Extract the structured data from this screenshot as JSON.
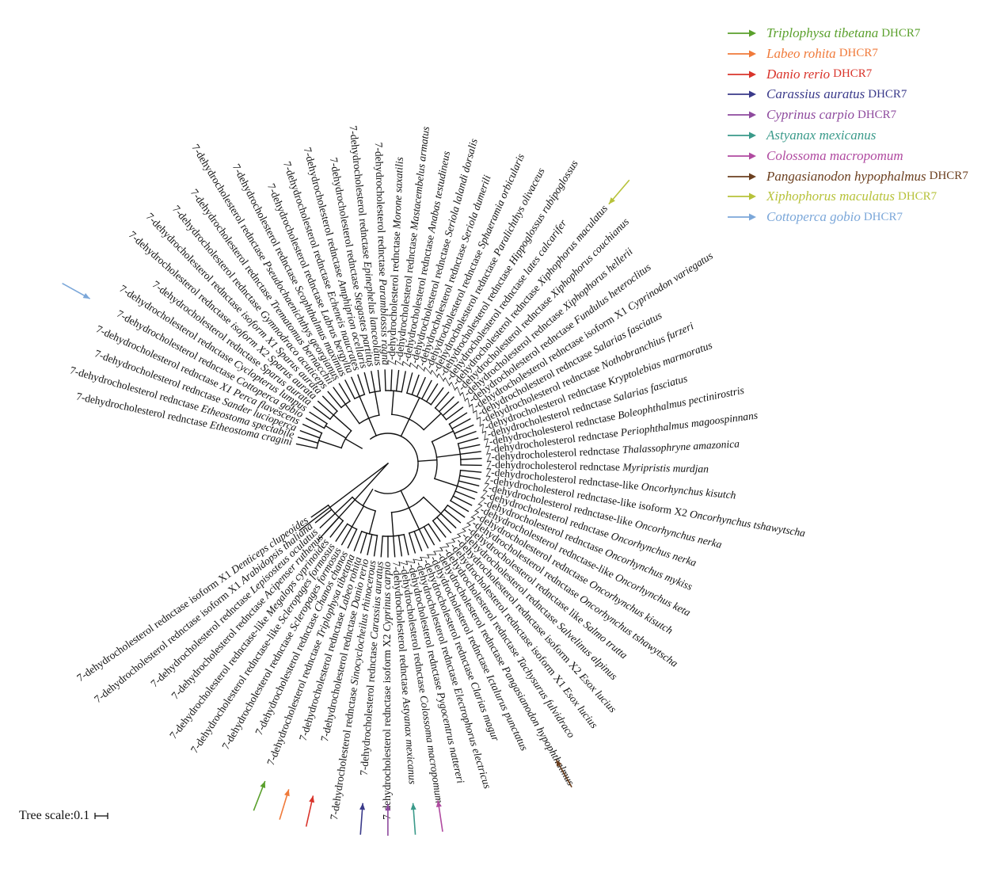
{
  "tree_title": "",
  "scale": {
    "label": "Tree scale:",
    "value": "0.1"
  },
  "colors": {
    "default": "#111111",
    "triplophysa": "#5aa02c",
    "labeo": "#f07a3a",
    "danio": "#d9342b",
    "carassius": "#3a3a8a",
    "cyprinus": "#8e4a9e",
    "astyanax": "#3a9a8a",
    "colossoma": "#b04aa0",
    "pangasianodon": "#6b3f1f",
    "xiphophorus": "#b7c23a",
    "cottoperca": "#7ba7d9"
  },
  "legend": [
    {
      "species": "Triplophysa tibetana",
      "gene": "DHCR7",
      "color": "#5aa02c"
    },
    {
      "species": "Labeo rohita",
      "gene": "DHCR7",
      "color": "#f07a3a"
    },
    {
      "species": "Danio rerio",
      "gene": "DHCR7",
      "color": "#d9342b"
    },
    {
      "species": "Carassius auratus",
      "gene": "DHCR7",
      "color": "#3a3a8a"
    },
    {
      "species": "Cyprinus carpio",
      "gene": "DHCR7",
      "color": "#8e4a9e"
    },
    {
      "species": "Astyanax mexicanus",
      "gene": "",
      "color": "#3a9a8a"
    },
    {
      "species": "Colossoma macropomum",
      "gene": "",
      "color": "#b04aa0"
    },
    {
      "species": "Pangasianodon hypophalmus",
      "gene": "DHCR7",
      "color": "#6b3f1f"
    },
    {
      "species": "Xiphophorus maculatus",
      "gene": "DHCR7",
      "color": "#b7c23a"
    },
    {
      "species": "Cottoperca gobio",
      "gene": "DHCR7",
      "color": "#7ba7d9"
    }
  ],
  "leaves": [
    {
      "prefix": "7-dehydrocholesterol rednctase ",
      "species": "Etheostoma cragini",
      "color": "default"
    },
    {
      "prefix": "7-dehydrocholesterol rednctase ",
      "species": "Etheostoma spectabile",
      "color": "default"
    },
    {
      "prefix": "7-dehydrocholesterol rednctase ",
      "species": "Sander lucioperca",
      "color": "default"
    },
    {
      "prefix": "7-dehydrocholesterol rednctase ",
      "species": "X1 Perca flavescens",
      "color": "default"
    },
    {
      "prefix": "7-dehydrocholesterol rednctase ",
      "species": "Cottoperca gobio",
      "color": "cottoperca"
    },
    {
      "prefix": "7-dehydrocholesterol rednctase ",
      "species": "Cyclopterus lumpus",
      "color": "default"
    },
    {
      "prefix": "7-dehydrocholesterol rednctase ",
      "species": "Sparus aurata",
      "color": "default"
    },
    {
      "prefix": "7-dehydrocholesterol rednctase ",
      "species": "isoform X2 Sparus aurata",
      "color": "default"
    },
    {
      "prefix": "7-dehydrocholesterol rednctase ",
      "species": "isoform X1 Sparus aurata",
      "color": "default"
    },
    {
      "prefix": "7-dehydrocholesterol rednctase ",
      "species": "Gymnodraco acuticeps",
      "color": "default"
    },
    {
      "prefix": "7-dehydrocholesterol rednctase ",
      "species": "Trematomus bernacchii",
      "color": "default"
    },
    {
      "prefix": "7-dehydrocholesterol rednctase ",
      "species": "Pseudochaenichthys georgianus",
      "color": "default"
    },
    {
      "prefix": "7-dehydrocholesterol rednctase ",
      "species": "Scophthalmus maximus",
      "color": "default"
    },
    {
      "prefix": "7-dehydrocholesterol rednctase ",
      "species": "Labrus bergylta",
      "color": "default"
    },
    {
      "prefix": "7-dehydrocholesterol rednctase ",
      "species": "Echeneis naucrates",
      "color": "default"
    },
    {
      "prefix": "7-dehydrocholesterol rednctase ",
      "species": "Amphiprion ocellaris",
      "color": "default"
    },
    {
      "prefix": "7-dehydrocholesterol rednctase ",
      "species": "Stegastes partitus",
      "color": "default"
    },
    {
      "prefix": "7-dehydrocholesterol rednctase ",
      "species": "Epinephelus lanceolatus",
      "color": "default"
    },
    {
      "prefix": "7-dehydrocholesterol rednctase ",
      "species": "Paramblossis ragna",
      "color": "default"
    },
    {
      "prefix": "7-dehydrocholesterol rednctase ",
      "species": "Morone saxatilis",
      "color": "default"
    },
    {
      "prefix": "7-dehydrocholesterol rednctase ",
      "species": "Mastacembelus armatus",
      "color": "default"
    },
    {
      "prefix": "7-dehydrocholesterol rednctase ",
      "species": "Anabas testudineus",
      "color": "default"
    },
    {
      "prefix": "7-dehydrocholesterol rednctase ",
      "species": "Seriola lalandi dorsalis",
      "color": "default"
    },
    {
      "prefix": "7-dehydrocholesterol rednctase ",
      "species": "Seriola dumerili",
      "color": "default"
    },
    {
      "prefix": "7-dehydrocholesterol rednctase ",
      "species": "Sphaeramia orbicularis",
      "color": "default"
    },
    {
      "prefix": "7-dehydrocholesterol rednctase ",
      "species": "Paralichthys olivaceus",
      "color": "default"
    },
    {
      "prefix": "7-dehydrocholesterol rednctase ",
      "species": "Hippoglossus rubipoglossus",
      "color": "default"
    },
    {
      "prefix": "7-dehydrocholesterol rednctase ",
      "species": "lates calcarifer",
      "color": "default"
    },
    {
      "prefix": "7-dehydrocholesterol rednctase ",
      "species": "Xiphophorus maculatus",
      "color": "xiphophorus"
    },
    {
      "prefix": "7-dehydrocholesterol rednctase ",
      "species": "Xiphophorus couchianus",
      "color": "default"
    },
    {
      "prefix": "7-dehydrocholesterol rednctase ",
      "species": "Xiphophorus hellerii",
      "color": "default"
    },
    {
      "prefix": "7-dehydrocholesterol rednctase ",
      "species": "Fundulus heteroclitus",
      "color": "default"
    },
    {
      "prefix": "7-dehydrocholesterol rednctase isoform X1 ",
      "species": "Cyprinodon variegatus",
      "color": "default"
    },
    {
      "prefix": "7-dehydrocholesterol rednctase ",
      "species": "Salarias fasciatus",
      "color": "default"
    },
    {
      "prefix": "7-dehydrocholesterol rednctase ",
      "species": "Nothobranchius furzeri",
      "color": "default"
    },
    {
      "prefix": "7-dehydrocholesterol rednctase ",
      "species": "Kryptolebias marmoratus",
      "color": "default"
    },
    {
      "prefix": "7-dehydrocholesterol rednctase ",
      "species": "Salarias fasciatus",
      "color": "default"
    },
    {
      "prefix": "7-dehydrocholesterol rednctase ",
      "species": "Boleophthalmus pectinirostris",
      "color": "default"
    },
    {
      "prefix": "7-dehydrocholesterol rednctase ",
      "species": "Periophthalmus magoospinnans",
      "color": "default"
    },
    {
      "prefix": "7-dehydrocholesterol rednctase ",
      "species": "Thalassophryne amazonica",
      "color": "default"
    },
    {
      "prefix": "7-dehydrocholesterol rednctase ",
      "species": "Myripristis murdjan",
      "color": "default"
    },
    {
      "prefix": "7-dehydrocholesterol rednctase-like ",
      "species": "Oncorhynchus kisutch",
      "color": "default"
    },
    {
      "prefix": "7-dehydrocholesterol rednctase-like isoform X2 ",
      "species": "Oncorhynchus tshawytscha",
      "color": "default"
    },
    {
      "prefix": "7-dehydrocholesterol rednctase-like ",
      "species": "Oncorhynchus nerka",
      "color": "default"
    },
    {
      "prefix": "7-dehydrocholesterol rednctase ",
      "species": "Oncorhynchus nerka",
      "color": "default"
    },
    {
      "prefix": "7-dehydrocholesterol rednctase ",
      "species": "Oncorhynchus mykiss",
      "color": "default"
    },
    {
      "prefix": "7-dehydrocholesterol rednctase-like ",
      "species": "Oncorhynchus keta",
      "color": "default"
    },
    {
      "prefix": "7-dehydrocholesterol rednctase ",
      "species": "Oncorhynchus kisutch",
      "color": "default"
    },
    {
      "prefix": "7-dehydrocholesterol rednctase ",
      "species": "Oncorhynchus tshawytscha",
      "color": "default"
    },
    {
      "prefix": "7-dehydrocholesterol rednctase like ",
      "species": "Salmo trutta",
      "color": "default"
    },
    {
      "prefix": "7-dehydrocholesterol rednctase ",
      "species": "Salvelinus alpinus",
      "color": "default"
    },
    {
      "prefix": "7-dehydrocholesterol rednctase isoform X2 ",
      "species": "Esox lucius",
      "color": "default"
    },
    {
      "prefix": "7-dehydrocholesterol rednctase isoform X1 ",
      "species": "Esox lucius",
      "color": "default"
    },
    {
      "prefix": "7-dehydrocholesterol rednctase ",
      "species": "Tachysurus fulvidraco",
      "color": "default"
    },
    {
      "prefix": "7-dehydrocholesterol rednctase ",
      "species": "Pangasianodon hypophthalmus",
      "color": "pangasianodon"
    },
    {
      "prefix": "7-dehydrocholesterol rednctase ",
      "species": "Ictalurus punctatus",
      "color": "default"
    },
    {
      "prefix": "7-dehydrocholesterol rednctase ",
      "species": "Clarias magur",
      "color": "default"
    },
    {
      "prefix": "7-dehydrocholesterol rednctase ",
      "species": "Electrophorus electricus",
      "color": "default"
    },
    {
      "prefix": "7-dehydrocholesterol rednctase ",
      "species": "Pygocentrus nattereri",
      "color": "default"
    },
    {
      "prefix": "7-dehydrocholesterol rednctase ",
      "species": "Colossoma macropomum",
      "color": "colossoma"
    },
    {
      "prefix": "7-dehydrocholesterol rednctase ",
      "species": "Astyanax mexicanus",
      "color": "astyanax"
    },
    {
      "prefix": "7-dehydrocholesterol rednctase isoform X2 ",
      "species": "Cyprinus carpio",
      "color": "cyprinus"
    },
    {
      "prefix": "7-dehydrocholesterol rednctase ",
      "species": "Carassius auratus",
      "color": "carassius"
    },
    {
      "prefix": "7-dehydrocholesterol rednctase ",
      "species": "Sinocyclocheilus rhinocerous",
      "color": "default"
    },
    {
      "prefix": "7-dehydrocholesterol rednctase ",
      "species": "Danio rerio",
      "color": "danio"
    },
    {
      "prefix": "7-dehydrocholesterol rednctase ",
      "species": "Labeo rohita",
      "color": "labeo"
    },
    {
      "prefix": "7-dehydrocholesterol rednctase ",
      "species": "Triplophysa tibetana",
      "color": "triplophysa"
    },
    {
      "prefix": "7-dehydrocholesterol rednctase ",
      "species": "Chanos chanos",
      "color": "default"
    },
    {
      "prefix": "7-dehydrocholesterol rednctase ",
      "species": "Scleropages formosus",
      "color": "default"
    },
    {
      "prefix": "7-dehydrocholesterol rednctase-like ",
      "species": "Scleropages formosus",
      "color": "default"
    },
    {
      "prefix": "7-dehydrocholesterol rednctase-like ",
      "species": "Megalops cyprinoides",
      "color": "default"
    },
    {
      "prefix": "7-dehydrocholesterol rednctase ",
      "species": "Acipenser ruthenus",
      "color": "default"
    },
    {
      "prefix": "7-dehydrocholesterol rednctase ",
      "species": "Lepisosteus oculatus",
      "color": "default"
    },
    {
      "prefix": "7-dehydrocholesterol rednctase isoform X1 ",
      "species": "Arabidopsis thaliana",
      "color": "default"
    },
    {
      "prefix": "7-dehydrocholesterol rednctase isoform X1 ",
      "species": "Denticeps clupeoides",
      "color": "default"
    }
  ],
  "marked_species": [
    "Cottoperca gobio",
    "Xiphophorus maculatus",
    "Pangasianodon hypophthalmus",
    "Colossoma macropomum",
    "Astyanax mexicanus",
    "Cyprinus carpio",
    "Carassius auratus",
    "Danio rerio",
    "Labeo rohita",
    "Triplophysa tibetana"
  ]
}
